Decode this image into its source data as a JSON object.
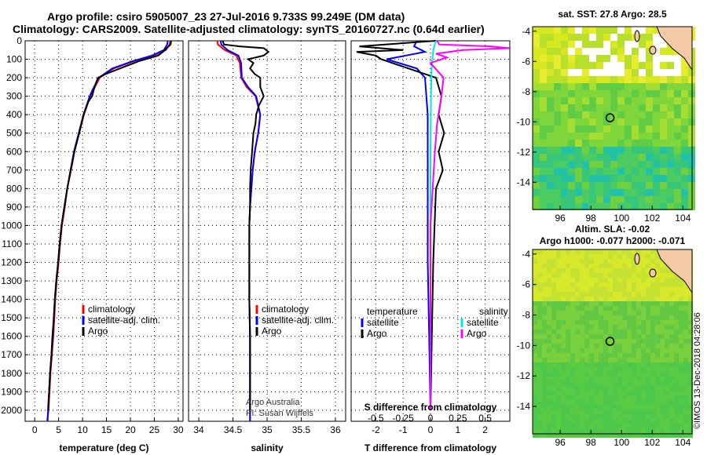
{
  "header": {
    "line1": "Argo profile: csiro 5905007_23 27-Jul-2016 9.733S 99.249E (DM data)",
    "line2": "Climatology: CARS2009. Satellite-adjusted climatology: synTS_20160727.nc (0.64d earlier)"
  },
  "credit": "©IMOS 13-Dec-2018 04:28:06",
  "chart_data": [
    {
      "type": "line",
      "xlabel": "temperature (deg C)",
      "ylabel": "",
      "xlim": [
        -2,
        31
      ],
      "ylim": [
        2060,
        0
      ],
      "xticks": [
        0,
        5,
        10,
        15,
        20,
        25,
        30
      ],
      "yticks": [
        0,
        100,
        200,
        300,
        400,
        500,
        600,
        700,
        800,
        900,
        1000,
        1100,
        1200,
        1300,
        1400,
        1500,
        1600,
        1700,
        1800,
        1900,
        2000
      ],
      "legend": {
        "position": "bottom-center"
      },
      "series": [
        {
          "name": "climatology",
          "color": "#ff0000",
          "x": [
            28.3,
            28.2,
            27.4,
            24.8,
            20.8,
            16.5,
            13.6,
            12.4,
            11.6,
            10.3,
            9.3,
            8.3,
            7.6,
            6.8,
            6.3,
            5.7,
            5.3,
            5.0,
            4.6,
            4.3,
            4.1,
            3.9,
            3.6,
            3.3,
            3.1,
            2.9,
            2.6
          ],
          "y": [
            0,
            20,
            50,
            80,
            110,
            150,
            200,
            260,
            300,
            400,
            500,
            600,
            700,
            800,
            900,
            1000,
            1100,
            1200,
            1300,
            1400,
            1500,
            1600,
            1700,
            1800,
            1900,
            2000,
            2060
          ]
        },
        {
          "name": "satellite-adj. clim.",
          "color": "#0000ff",
          "x": [
            27.8,
            27.7,
            27.0,
            24.5,
            20.5,
            16.2,
            13.4,
            12.2,
            11.5,
            10.2,
            9.2,
            8.2,
            7.5,
            6.8,
            6.2,
            5.6,
            5.2,
            4.9,
            4.5,
            4.2,
            4.0,
            3.8,
            3.5,
            3.2,
            3.0,
            2.8,
            2.7
          ],
          "y": [
            0,
            20,
            50,
            80,
            110,
            150,
            200,
            260,
            300,
            400,
            500,
            600,
            700,
            800,
            900,
            1000,
            1100,
            1200,
            1300,
            1400,
            1500,
            1600,
            1700,
            1800,
            1900,
            2000,
            2060
          ]
        },
        {
          "name": "Argo",
          "color": "#000000",
          "x": [
            28.5,
            28.4,
            27.6,
            26.8,
            25.8,
            21.8,
            17.8,
            14.8,
            13.2,
            12.5,
            12.0,
            11.2,
            10.2,
            9.3,
            8.3,
            7.5,
            6.8,
            6.2,
            5.6,
            5.2,
            4.9,
            4.5,
            4.2,
            4.0,
            3.7,
            3.5,
            3.2,
            3.0,
            2.8
          ],
          "y": [
            0,
            20,
            40,
            60,
            80,
            110,
            150,
            180,
            200,
            250,
            300,
            330,
            400,
            500,
            600,
            700,
            800,
            900,
            1000,
            1100,
            1200,
            1300,
            1400,
            1500,
            1600,
            1700,
            1800,
            1900,
            2000
          ]
        }
      ]
    },
    {
      "type": "line",
      "xlabel": "salinity",
      "ylabel": "",
      "xlim": [
        33.85,
        36.15
      ],
      "ylim": [
        2060,
        0
      ],
      "xticks": [
        34,
        34.5,
        35,
        35.5,
        36
      ],
      "legend": {
        "position": "bottom-center"
      },
      "series": [
        {
          "name": "climatology",
          "color": "#ff0000",
          "x": [
            34.27,
            34.28,
            34.38,
            34.55,
            34.6,
            34.62,
            34.7,
            34.83,
            34.9,
            34.87,
            34.82,
            34.79,
            34.77,
            34.75,
            34.74,
            34.74,
            34.74,
            34.75,
            34.75,
            34.75,
            34.75,
            34.75
          ],
          "y": [
            0,
            20,
            50,
            80,
            120,
            200,
            250,
            300,
            400,
            500,
            600,
            700,
            800,
            900,
            1000,
            1200,
            1400,
            1600,
            1800,
            1900,
            2000,
            2060
          ]
        },
        {
          "name": "satellite-adj. clim.",
          "color": "#0000ff",
          "x": [
            34.32,
            34.33,
            34.42,
            34.58,
            34.62,
            34.63,
            34.72,
            34.84,
            34.9,
            34.87,
            34.82,
            34.79,
            34.77,
            34.75,
            34.74,
            34.74,
            34.74,
            34.75,
            34.75,
            34.75,
            34.75,
            34.75
          ],
          "y": [
            0,
            20,
            50,
            80,
            120,
            200,
            250,
            300,
            400,
            500,
            600,
            700,
            800,
            900,
            1000,
            1200,
            1400,
            1600,
            1800,
            1900,
            2000,
            2060
          ]
        },
        {
          "name": "Argo",
          "color": "#000000",
          "x": [
            34.35,
            34.37,
            34.6,
            34.95,
            35.02,
            34.95,
            34.72,
            34.8,
            34.75,
            34.82,
            34.9,
            34.9,
            34.95,
            34.88,
            34.84,
            34.83,
            34.8,
            34.78,
            34.76,
            34.75,
            34.75,
            34.74,
            34.74,
            34.74,
            34.75,
            34.75,
            34.75
          ],
          "y": [
            0,
            20,
            30,
            40,
            60,
            80,
            100,
            120,
            150,
            180,
            200,
            250,
            300,
            350,
            400,
            450,
            500,
            600,
            700,
            800,
            900,
            1000,
            1200,
            1400,
            1600,
            1800,
            2000
          ]
        }
      ],
      "annotations": [
        "Argo Australia",
        "PI: Susan Wijffels"
      ]
    },
    {
      "type": "line",
      "xlabel": "T difference from climatology",
      "x2label": "S difference from climatology",
      "ylabel": "",
      "xlim": [
        -2.9,
        2.9
      ],
      "x2lim": [
        -0.725,
        0.725
      ],
      "ylim": [
        2060,
        0
      ],
      "xticks": [
        -2,
        -1,
        0,
        1,
        2
      ],
      "x2ticks": [
        -0.5,
        -0.25,
        0,
        0.25,
        0.5
      ],
      "x2ticklabels": [
        "-0.5",
        "-0.25",
        "0",
        "0.25",
        "0.5"
      ],
      "legend": {
        "position": "bottom",
        "left_title": "temperature",
        "right_title": "salinity"
      },
      "series": [
        {
          "name": "temperature satellite",
          "color": "#0000ff",
          "axis": "T",
          "x": [
            -0.5,
            -0.6,
            -0.2,
            -0.9,
            -1.6,
            -0.5,
            -0.2,
            -0.1,
            -0.1,
            -0.1,
            -0.1,
            -0.05,
            0
          ],
          "y": [
            0,
            30,
            60,
            80,
            100,
            150,
            200,
            400,
            600,
            800,
            1200,
            1600,
            2000
          ]
        },
        {
          "name": "temperature Argo",
          "color": "#000000",
          "axis": "T",
          "x": [
            0.2,
            -2.6,
            -1.0,
            -2.7,
            -2.0,
            -1.8,
            -0.8,
            0.2,
            0.4,
            0.3,
            0.5,
            0.3,
            0.45,
            0.2,
            0.15,
            0.1,
            0.05,
            0
          ],
          "y": [
            0,
            30,
            50,
            60,
            80,
            100,
            150,
            200,
            300,
            400,
            500,
            600,
            700,
            800,
            1000,
            1200,
            1600,
            2000
          ]
        },
        {
          "name": "salinity satellite",
          "color": "#00e5ee",
          "axis": "S",
          "x": [
            0.05,
            0.03,
            0.02,
            0.01,
            0.005,
            0,
            0,
            0
          ],
          "y": [
            0,
            40,
            80,
            150,
            300,
            600,
            1200,
            2000
          ]
        },
        {
          "name": "salinity Argo",
          "color": "#ff00ff",
          "axis": "S",
          "x": [
            0.06,
            0.08,
            0.55,
            0.72,
            0.3,
            0.05,
            0.15,
            0.0,
            0.12,
            0.1,
            0.06,
            0.04,
            0.02,
            0,
            0,
            0
          ],
          "y": [
            0,
            20,
            30,
            40,
            50,
            70,
            90,
            120,
            200,
            300,
            450,
            600,
            800,
            1000,
            1500,
            2000
          ]
        }
      ]
    },
    {
      "type": "heatmap",
      "title": "sat. SST: 27.8 Argo: 28.5",
      "xlim": [
        94.2,
        104.6
      ],
      "ylim": [
        -15.8,
        -3.7
      ],
      "xticks": [
        96,
        98,
        100,
        102,
        104
      ],
      "yticks": [
        -4,
        -6,
        -8,
        -10,
        -12,
        -14
      ],
      "argo_position": {
        "lon": 99.249,
        "lat": -9.733
      }
    },
    {
      "type": "heatmap",
      "title": "Altim. SLA: -0.02",
      "subtitle": "Argo h1000: -0.077 h2000: -0.071",
      "xlim": [
        94.2,
        104.6
      ],
      "ylim": [
        -15.8,
        -3.7
      ],
      "xticks": [
        96,
        98,
        100,
        102,
        104
      ],
      "yticks": [
        -4,
        -6,
        -8,
        -10,
        -12,
        -14
      ],
      "argo_position": {
        "lon": 99.249,
        "lat": -9.733
      }
    }
  ]
}
